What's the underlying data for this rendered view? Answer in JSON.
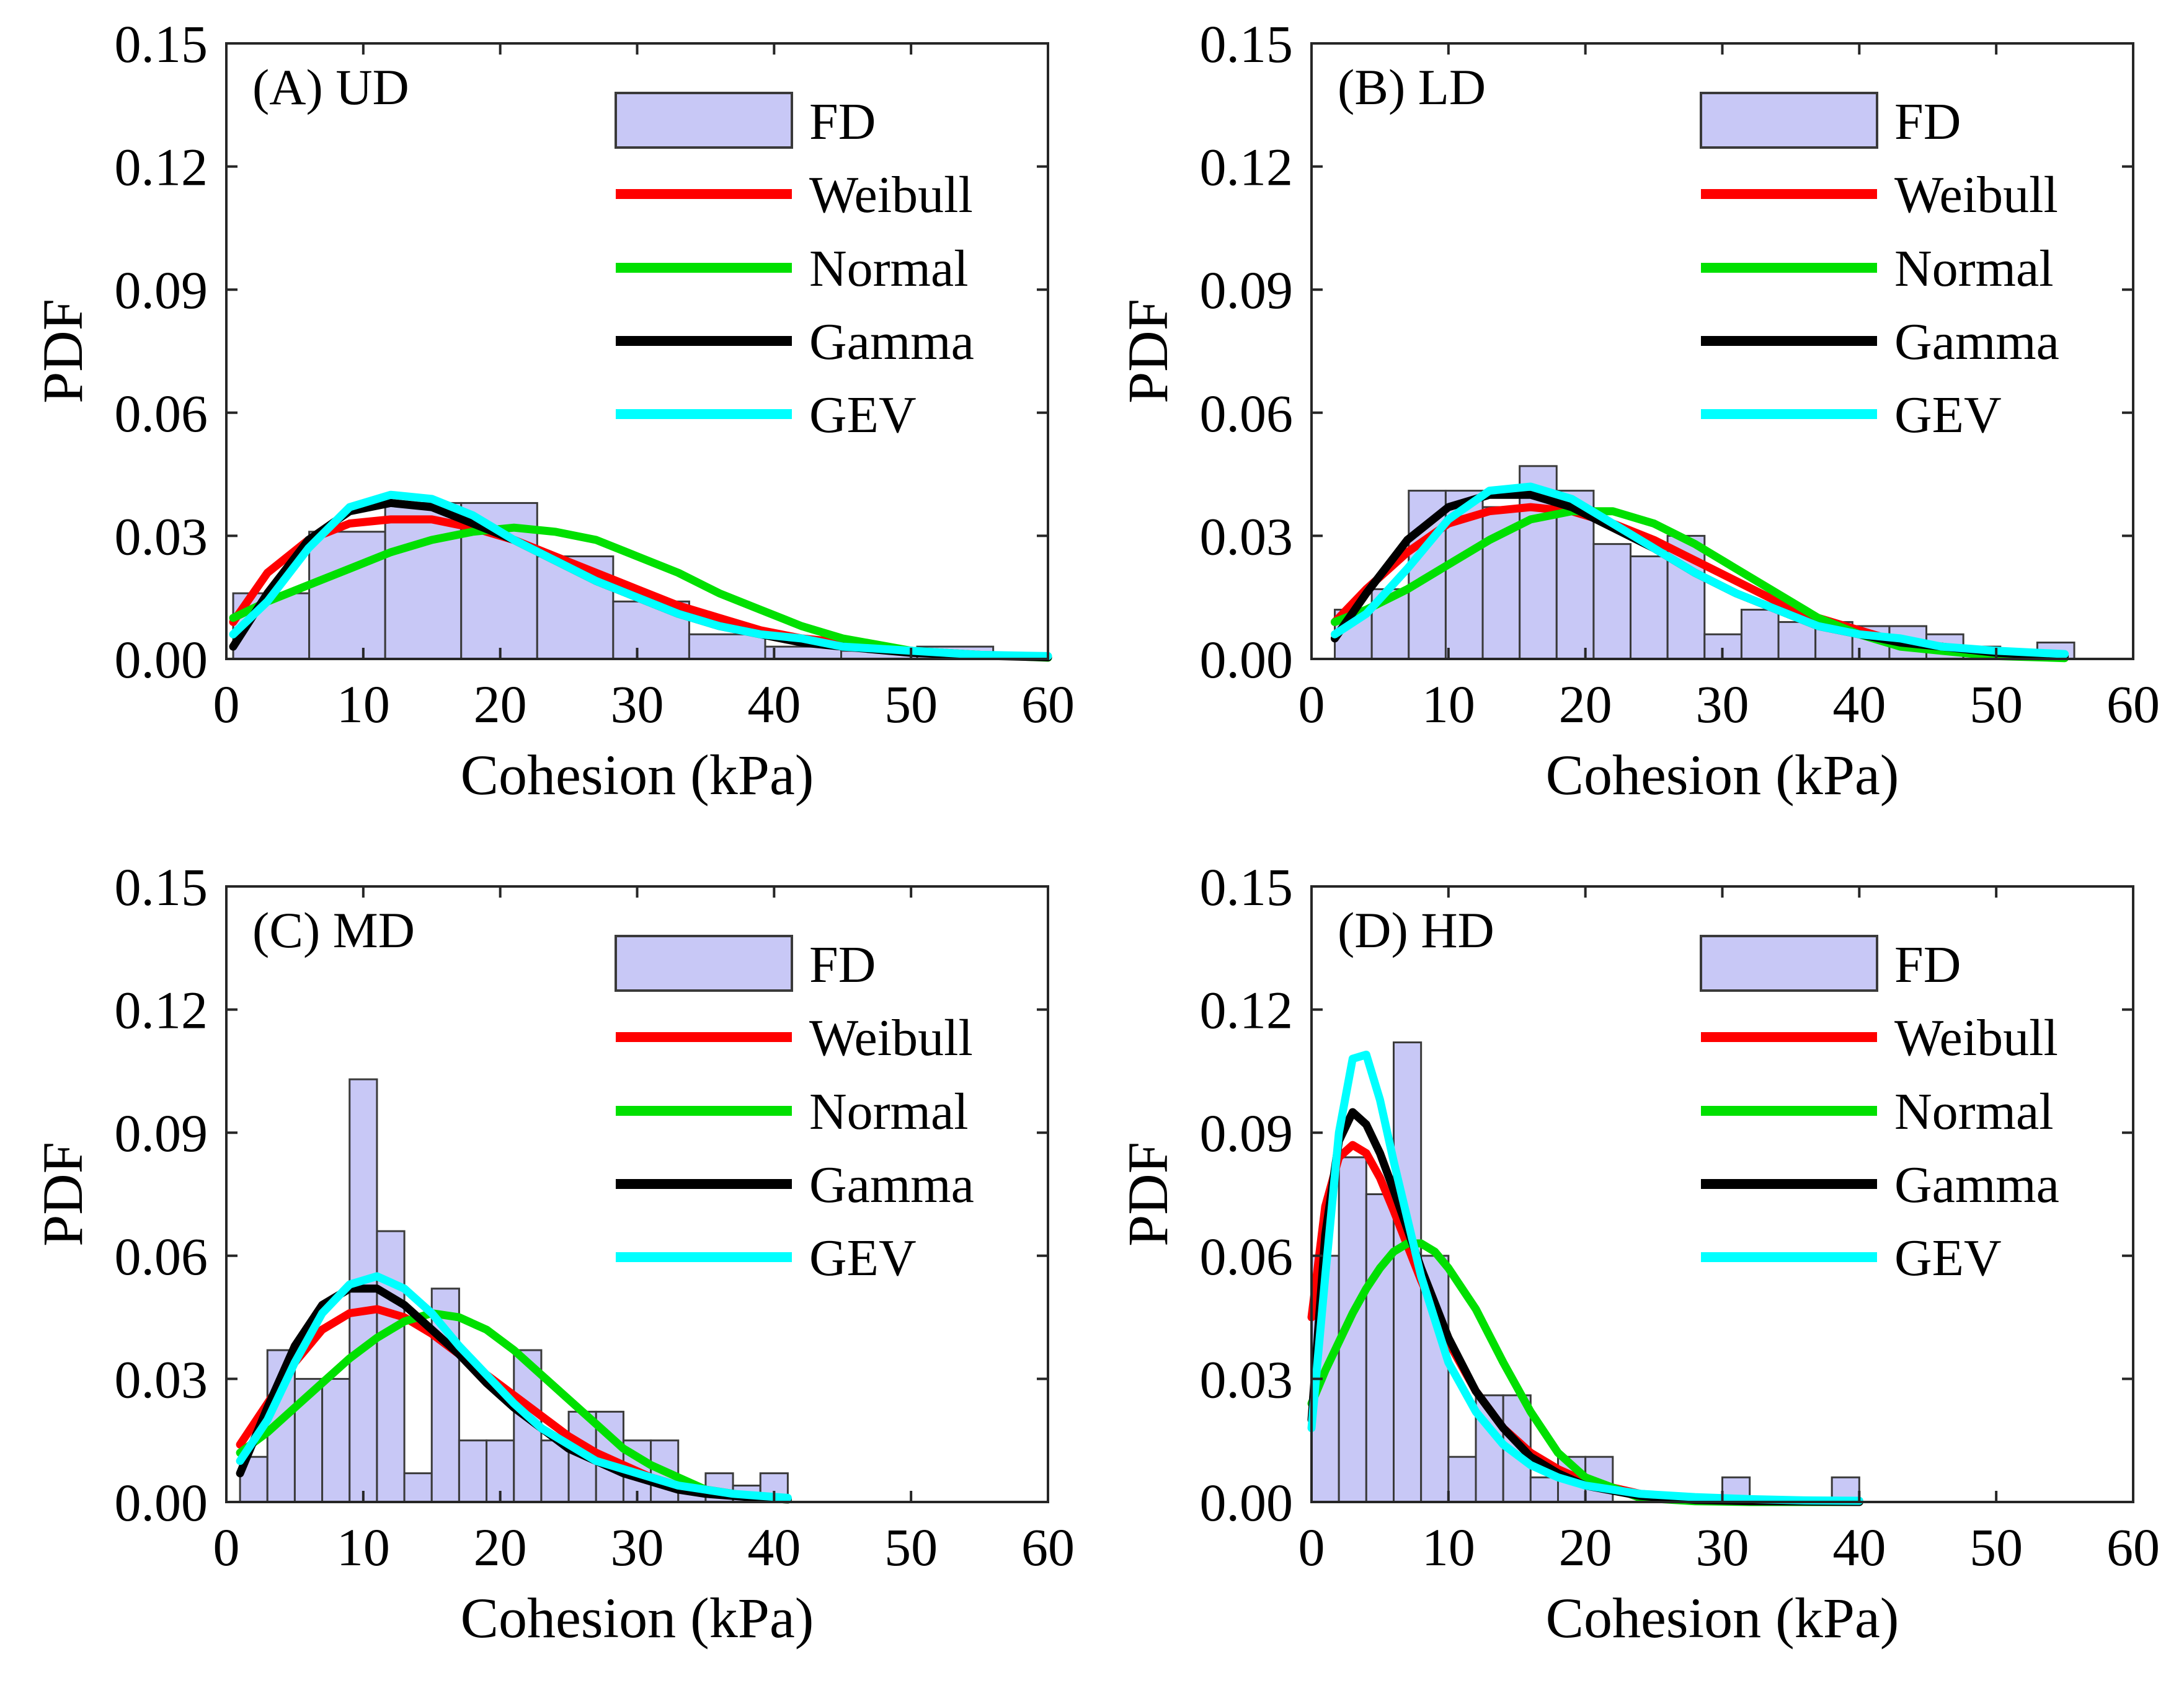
{
  "colors": {
    "histogram_fill": "#c8c8f6",
    "histogram_stroke": "#3a3a3a",
    "weibull": "#ff0000",
    "normal": "#00e000",
    "gamma": "#000000",
    "gev": "#00ffff",
    "axis": "#262626"
  },
  "chart_data": [
    {
      "type": "bar",
      "title": "(A) UD",
      "xlabel": "Cohesion (kPa)",
      "ylabel": "PDF",
      "xlim": [
        0,
        60
      ],
      "ylim": [
        0,
        0.15
      ],
      "xticks": [
        0,
        10,
        20,
        30,
        40,
        50,
        60
      ],
      "yticks": [
        0,
        0.03,
        0.06,
        0.09,
        0.12,
        0.15
      ],
      "xtick_labels": [
        "0",
        "10",
        "20",
        "30",
        "40",
        "50",
        "60"
      ],
      "ytick_labels": [
        "0.00",
        "0.03",
        "0.06",
        "0.09",
        "0.12",
        "0.15"
      ],
      "legend": [
        "FD",
        "Weibull",
        "Normal",
        "Gamma",
        "GEV"
      ],
      "histogram": {
        "name": "FD",
        "bin_edges": [
          0.5,
          6.05,
          11.6,
          17.15,
          22.7,
          28.25,
          33.8,
          39.35,
          44.9,
          50.45,
          56.0
        ],
        "values": [
          0.016,
          0.031,
          0.038,
          0.038,
          0.025,
          0.014,
          0.006,
          0.003,
          0.002,
          0.003
        ]
      },
      "series": [
        {
          "name": "Weibull",
          "x": [
            0.5,
            3,
            6,
            9,
            12,
            15,
            18,
            21,
            24,
            27,
            30,
            33,
            36,
            39,
            42,
            45,
            50,
            55,
            60
          ],
          "y": [
            0.009,
            0.021,
            0.029,
            0.033,
            0.034,
            0.034,
            0.032,
            0.029,
            0.025,
            0.021,
            0.017,
            0.013,
            0.01,
            0.007,
            0.005,
            0.004,
            0.002,
            0.001,
            0.0005
          ]
        },
        {
          "name": "Normal",
          "x": [
            0.5,
            3,
            6,
            9,
            12,
            15,
            18,
            21,
            24,
            27,
            30,
            33,
            36,
            39,
            42,
            45,
            50,
            55,
            60
          ],
          "y": [
            0.01,
            0.014,
            0.018,
            0.022,
            0.026,
            0.029,
            0.031,
            0.032,
            0.031,
            0.029,
            0.025,
            0.021,
            0.016,
            0.012,
            0.008,
            0.005,
            0.002,
            0.001,
            0.0003
          ]
        },
        {
          "name": "Gamma",
          "x": [
            0.5,
            3,
            6,
            9,
            12,
            15,
            18,
            21,
            24,
            27,
            30,
            33,
            36,
            39,
            42,
            45,
            50,
            55,
            60
          ],
          "y": [
            0.003,
            0.016,
            0.029,
            0.036,
            0.038,
            0.037,
            0.033,
            0.029,
            0.024,
            0.019,
            0.015,
            0.011,
            0.008,
            0.006,
            0.004,
            0.003,
            0.0015,
            0.0008,
            0.0004
          ]
        },
        {
          "name": "GEV",
          "x": [
            0.5,
            3,
            6,
            9,
            12,
            15,
            18,
            21,
            24,
            27,
            30,
            33,
            36,
            39,
            42,
            45,
            50,
            55,
            60
          ],
          "y": [
            0.006,
            0.014,
            0.027,
            0.037,
            0.04,
            0.039,
            0.035,
            0.029,
            0.024,
            0.019,
            0.015,
            0.011,
            0.008,
            0.006,
            0.005,
            0.003,
            0.002,
            0.001,
            0.0007
          ]
        }
      ]
    },
    {
      "type": "bar",
      "title": "(B) LD",
      "xlabel": "Cohesion (kPa)",
      "ylabel": "PDF",
      "xlim": [
        0,
        60
      ],
      "ylim": [
        0,
        0.15
      ],
      "xticks": [
        0,
        10,
        20,
        30,
        40,
        50,
        60
      ],
      "yticks": [
        0,
        0.03,
        0.06,
        0.09,
        0.12,
        0.15
      ],
      "xtick_labels": [
        "0",
        "10",
        "20",
        "30",
        "40",
        "50",
        "60"
      ],
      "ytick_labels": [
        "0.00",
        "0.03",
        "0.06",
        "0.09",
        "0.12",
        "0.15"
      ],
      "legend": [
        "FD",
        "Weibull",
        "Normal",
        "Gamma",
        "GEV"
      ],
      "histogram": {
        "name": "FD",
        "bin_edges": [
          1.7,
          4.4,
          7.1,
          9.8,
          12.5,
          15.2,
          17.9,
          20.6,
          23.3,
          26.0,
          28.7,
          31.4,
          34.1,
          36.8,
          39.5,
          42.2,
          44.9,
          47.6,
          50.3,
          53.0,
          55.7
        ],
        "values": [
          0.012,
          0.017,
          0.041,
          0.041,
          0.037,
          0.047,
          0.041,
          0.028,
          0.025,
          0.03,
          0.006,
          0.012,
          0.009,
          0.009,
          0.008,
          0.008,
          0.006,
          0.003,
          0.002,
          0.004
        ]
      },
      "series": [
        {
          "name": "Weibull",
          "x": [
            1.7,
            4,
            7,
            10,
            13,
            16,
            19,
            22,
            25,
            28,
            31,
            34,
            37,
            40,
            43,
            46,
            50,
            55
          ],
          "y": [
            0.009,
            0.017,
            0.026,
            0.033,
            0.036,
            0.037,
            0.036,
            0.033,
            0.029,
            0.024,
            0.019,
            0.014,
            0.01,
            0.007,
            0.004,
            0.003,
            0.0015,
            0.0007
          ]
        },
        {
          "name": "Normal",
          "x": [
            1.7,
            4,
            7,
            10,
            13,
            16,
            19,
            22,
            25,
            28,
            31,
            34,
            37,
            40,
            43,
            46,
            50,
            55
          ],
          "y": [
            0.009,
            0.012,
            0.017,
            0.023,
            0.029,
            0.034,
            0.036,
            0.036,
            0.033,
            0.028,
            0.022,
            0.016,
            0.01,
            0.006,
            0.003,
            0.002,
            0.0007,
            0.0002
          ]
        },
        {
          "name": "Gamma",
          "x": [
            1.7,
            4,
            7,
            10,
            13,
            16,
            19,
            22,
            25,
            28,
            31,
            34,
            37,
            40,
            43,
            46,
            50,
            55
          ],
          "y": [
            0.005,
            0.016,
            0.029,
            0.037,
            0.04,
            0.04,
            0.037,
            0.032,
            0.027,
            0.021,
            0.016,
            0.012,
            0.008,
            0.006,
            0.004,
            0.003,
            0.0015,
            0.0007
          ]
        },
        {
          "name": "GEV",
          "x": [
            1.7,
            4,
            7,
            10,
            13,
            16,
            19,
            22,
            25,
            28,
            31,
            34,
            37,
            40,
            43,
            46,
            50,
            55
          ],
          "y": [
            0.006,
            0.011,
            0.022,
            0.034,
            0.041,
            0.042,
            0.039,
            0.033,
            0.027,
            0.021,
            0.016,
            0.012,
            0.008,
            0.006,
            0.005,
            0.003,
            0.002,
            0.0012
          ]
        }
      ]
    },
    {
      "type": "bar",
      "title": "(C) MD",
      "xlabel": "Cohesion (kPa)",
      "ylabel": "PDF",
      "xlim": [
        0,
        60
      ],
      "ylim": [
        0,
        0.15
      ],
      "xticks": [
        0,
        10,
        20,
        30,
        40,
        50,
        60
      ],
      "yticks": [
        0,
        0.03,
        0.06,
        0.09,
        0.12,
        0.15
      ],
      "xtick_labels": [
        "0",
        "10",
        "20",
        "30",
        "40",
        "50",
        "60"
      ],
      "ytick_labels": [
        "0.00",
        "0.03",
        "0.06",
        "0.09",
        "0.12",
        "0.15"
      ],
      "legend": [
        "FD",
        "Weibull",
        "Normal",
        "Gamma",
        "GEV"
      ],
      "histogram": {
        "name": "FD",
        "bin_edges": [
          1.0,
          3.0,
          5.0,
          7.0,
          9.0,
          11.0,
          13.0,
          15.0,
          17.0,
          19.0,
          21.0,
          23.0,
          25.0,
          27.0,
          29.0,
          31.0,
          33.0,
          35.0,
          37.0,
          39.0,
          41.0
        ],
        "values": [
          0.011,
          0.037,
          0.03,
          0.03,
          0.103,
          0.066,
          0.007,
          0.052,
          0.015,
          0.015,
          0.037,
          0.015,
          0.022,
          0.022,
          0.015,
          0.015,
          0.004,
          0.007,
          0.004,
          0.007
        ]
      },
      "series": [
        {
          "name": "Weibull",
          "x": [
            1,
            3,
            5,
            7,
            9,
            11,
            13,
            15,
            17,
            19,
            21,
            23,
            25,
            27,
            29,
            31,
            33,
            35,
            37,
            39,
            41
          ],
          "y": [
            0.014,
            0.024,
            0.034,
            0.042,
            0.046,
            0.047,
            0.045,
            0.041,
            0.036,
            0.031,
            0.026,
            0.021,
            0.016,
            0.012,
            0.009,
            0.006,
            0.004,
            0.003,
            0.002,
            0.0012,
            0.0008
          ]
        },
        {
          "name": "Normal",
          "x": [
            1,
            3,
            5,
            7,
            9,
            11,
            13,
            15,
            17,
            19,
            21,
            23,
            25,
            27,
            29,
            31,
            33,
            35,
            37,
            39,
            41
          ],
          "y": [
            0.012,
            0.017,
            0.023,
            0.029,
            0.035,
            0.04,
            0.044,
            0.046,
            0.045,
            0.042,
            0.037,
            0.031,
            0.025,
            0.019,
            0.013,
            0.009,
            0.006,
            0.003,
            0.002,
            0.001,
            0.0006
          ]
        },
        {
          "name": "Gamma",
          "x": [
            1,
            3,
            5,
            7,
            9,
            11,
            13,
            15,
            17,
            19,
            21,
            23,
            25,
            27,
            29,
            31,
            33,
            35,
            37,
            39,
            41
          ],
          "y": [
            0.007,
            0.023,
            0.038,
            0.048,
            0.052,
            0.052,
            0.048,
            0.042,
            0.036,
            0.029,
            0.023,
            0.018,
            0.013,
            0.01,
            0.007,
            0.005,
            0.003,
            0.002,
            0.0015,
            0.001,
            0.0006
          ]
        },
        {
          "name": "GEV",
          "x": [
            1,
            3,
            5,
            7,
            9,
            11,
            13,
            15,
            17,
            19,
            21,
            23,
            25,
            27,
            29,
            31,
            33,
            35,
            37,
            39,
            41
          ],
          "y": [
            0.01,
            0.02,
            0.034,
            0.046,
            0.053,
            0.055,
            0.052,
            0.046,
            0.038,
            0.031,
            0.024,
            0.018,
            0.014,
            0.01,
            0.008,
            0.006,
            0.004,
            0.003,
            0.002,
            0.0015,
            0.001
          ]
        }
      ]
    },
    {
      "type": "bar",
      "title": "(D) HD",
      "xlabel": "Cohesion (kPa)",
      "ylabel": "PDF",
      "xlim": [
        0,
        60
      ],
      "ylim": [
        0,
        0.15
      ],
      "xticks": [
        0,
        10,
        20,
        30,
        40,
        50,
        60
      ],
      "yticks": [
        0,
        0.03,
        0.06,
        0.09,
        0.12,
        0.15
      ],
      "xtick_labels": [
        "0",
        "10",
        "20",
        "30",
        "40",
        "50",
        "60"
      ],
      "ytick_labels": [
        "0.00",
        "0.03",
        "0.06",
        "0.09",
        "0.12",
        "0.15"
      ],
      "legend": [
        "FD",
        "Weibull",
        "Normal",
        "Gamma",
        "GEV"
      ],
      "histogram": {
        "name": "FD",
        "bin_edges": [
          0.0,
          2.0,
          4.0,
          6.0,
          8.0,
          10.0,
          12.0,
          14.0,
          16.0,
          18.0,
          20.0,
          22.0,
          24.0,
          26.0,
          28.0,
          30.0,
          32.0,
          34.0,
          36.0,
          38.0,
          40.0
        ],
        "values": [
          0.06,
          0.084,
          0.075,
          0.112,
          0.06,
          0.011,
          0.026,
          0.026,
          0.006,
          0.011,
          0.011,
          0.0,
          0.0,
          0.0,
          0.0,
          0.006,
          0.0,
          0.0,
          0.0,
          0.006
        ]
      },
      "series": [
        {
          "name": "Weibull",
          "x": [
            0,
            1,
            2,
            3,
            4,
            5,
            6,
            8,
            10,
            12,
            14,
            16,
            18,
            20,
            24,
            28,
            32,
            36,
            40
          ],
          "y": [
            0.045,
            0.072,
            0.084,
            0.087,
            0.085,
            0.079,
            0.071,
            0.054,
            0.039,
            0.027,
            0.018,
            0.012,
            0.008,
            0.005,
            0.002,
            0.0009,
            0.0004,
            0.0002,
            0.0001
          ]
        },
        {
          "name": "Normal",
          "x": [
            0,
            1,
            2,
            3,
            4,
            5,
            6,
            7,
            8,
            9,
            10,
            12,
            14,
            16,
            18,
            20,
            24,
            28,
            32,
            36,
            40
          ],
          "y": [
            0.024,
            0.032,
            0.039,
            0.046,
            0.052,
            0.057,
            0.061,
            0.063,
            0.063,
            0.061,
            0.057,
            0.047,
            0.034,
            0.022,
            0.012,
            0.006,
            0.001,
            0.0002,
            0.0,
            0.0,
            0.0
          ]
        },
        {
          "name": "Gamma",
          "x": [
            0,
            1,
            2,
            3,
            4,
            5,
            6,
            8,
            10,
            12,
            14,
            16,
            18,
            20,
            24,
            28,
            32,
            36,
            40
          ],
          "y": [
            0.02,
            0.065,
            0.088,
            0.095,
            0.092,
            0.085,
            0.076,
            0.057,
            0.04,
            0.027,
            0.018,
            0.011,
            0.007,
            0.004,
            0.0015,
            0.0005,
            0.0002,
            0.0001,
            0.0
          ]
        },
        {
          "name": "GEV",
          "x": [
            0,
            1,
            2,
            3,
            4,
            5,
            6,
            8,
            10,
            12,
            14,
            16,
            18,
            20,
            24,
            28,
            32,
            36,
            40
          ],
          "y": [
            0.018,
            0.055,
            0.09,
            0.108,
            0.109,
            0.098,
            0.083,
            0.055,
            0.034,
            0.022,
            0.014,
            0.009,
            0.006,
            0.004,
            0.002,
            0.0012,
            0.0007,
            0.0004,
            0.0003
          ]
        }
      ]
    }
  ]
}
